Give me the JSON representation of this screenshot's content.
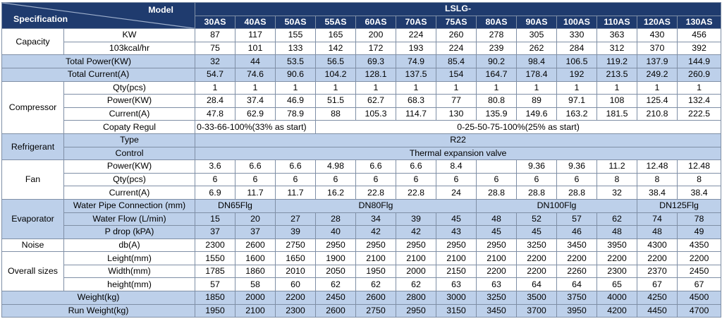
{
  "header": {
    "spec_label": "Specification",
    "model_label": "Model",
    "series": "LSLG-",
    "models": [
      "30AS",
      "40AS",
      "50AS",
      "55AS",
      "60AS",
      "70AS",
      "75AS",
      "80AS",
      "90AS",
      "100AS",
      "110AS",
      "120AS",
      "130AS"
    ]
  },
  "capacity": {
    "group": "Capacity",
    "kw_label": "KW",
    "kw": [
      "87",
      "117",
      "155",
      "165",
      "200",
      "224",
      "260",
      "278",
      "305",
      "330",
      "363",
      "430",
      "456"
    ],
    "kcal_label": "103kcal/hr",
    "kcal": [
      "75",
      "101",
      "133",
      "142",
      "172",
      "193",
      "224",
      "239",
      "262",
      "284",
      "312",
      "370",
      "392"
    ]
  },
  "total_power": {
    "label": "Total Power(KW)",
    "values": [
      "32",
      "44",
      "53.5",
      "56.5",
      "69.3",
      "74.9",
      "85.4",
      "90.2",
      "98.4",
      "106.5",
      "119.2",
      "137.9",
      "144.9"
    ]
  },
  "total_current": {
    "label": "Total Current(A)",
    "values": [
      "54.7",
      "74.6",
      "90.6",
      "104.2",
      "128.1",
      "137.5",
      "154",
      "164.7",
      "178.4",
      "192",
      "213.5",
      "249.2",
      "260.9"
    ]
  },
  "compressor": {
    "group": "Compressor",
    "qty_label": "Qty(pcs)",
    "qty": [
      "1",
      "1",
      "1",
      "1",
      "1",
      "1",
      "1",
      "1",
      "1",
      "1",
      "1",
      "1",
      "1"
    ],
    "power_label": "Power(KW)",
    "power": [
      "28.4",
      "37.4",
      "46.9",
      "51.5",
      "62.7",
      "68.3",
      "77",
      "80.8",
      "89",
      "97.1",
      "108",
      "125.4",
      "132.4"
    ],
    "current_label": "Current(A)",
    "current": [
      "47.8",
      "62.9",
      "78.9",
      "88",
      "105.3",
      "114.7",
      "130",
      "135.9",
      "149.6",
      "163.2",
      "181.5",
      "210.8",
      "222.5"
    ],
    "regul_label": "Copaty Regul",
    "regul_a": "0-33-66-100%(33% as start)",
    "regul_b": "0-25-50-75-100%(25% as start)"
  },
  "refrigerant": {
    "group": "Refrigerant",
    "type_label": "Type",
    "type": "R22",
    "control_label": "Control",
    "control": "Thermal expansion valve"
  },
  "fan": {
    "group": "Fan",
    "power_label": "Power(KW)",
    "power": [
      "3.6",
      "6.6",
      "6.6",
      "4.98",
      "6.6",
      "6.6",
      "8.4",
      "",
      "9.36",
      "9.36",
      "11.2",
      "12.48",
      "12.48"
    ],
    "qty_label": "Qty(pcs)",
    "qty": [
      "6",
      "6",
      "6",
      "6",
      "6",
      "6",
      "6",
      "6",
      "6",
      "6",
      "8",
      "8",
      "8"
    ],
    "current_label": "Current(A)",
    "current": [
      "6.9",
      "11.7",
      "11.7",
      "16.2",
      "22.8",
      "22.8",
      "24",
      "28.8",
      "28.8",
      "28.8",
      "32",
      "38.4",
      "38.4"
    ]
  },
  "evaporator": {
    "group": "Evaporator",
    "pipe_label": "Water Pipe Connection (mm)",
    "pipe": [
      "DN65Flg",
      "DN80Flg",
      "DN100Flg",
      "DN125Flg"
    ],
    "flow_label": "Water Flow (L/min)",
    "flow": [
      "15",
      "20",
      "27",
      "28",
      "34",
      "39",
      "45",
      "48",
      "52",
      "57",
      "62",
      "74",
      "78"
    ],
    "pdrop_label": "P drop (kPA)",
    "pdrop": [
      "37",
      "37",
      "39",
      "40",
      "42",
      "42",
      "43",
      "45",
      "45",
      "46",
      "48",
      "48",
      "49"
    ]
  },
  "noise": {
    "group": "Noise",
    "label": "db(A)",
    "values": [
      "2300",
      "2600",
      "2750",
      "2950",
      "2950",
      "2950",
      "2950",
      "2950",
      "3250",
      "3450",
      "3950",
      "4300",
      "4350"
    ]
  },
  "sizes": {
    "group": "Overall sizes",
    "length_label": "Leight(mm)",
    "length": [
      "1550",
      "1600",
      "1650",
      "1900",
      "2100",
      "2100",
      "2100",
      "2100",
      "2200",
      "2200",
      "2200",
      "2200",
      "2200"
    ],
    "width_label": "Width(mm)",
    "width": [
      "1785",
      "1860",
      "2010",
      "2050",
      "1950",
      "2000",
      "2150",
      "2200",
      "2200",
      "2260",
      "2300",
      "2370",
      "2450"
    ],
    "height_label": "height(mm)",
    "height": [
      "57",
      "58",
      "60",
      "62",
      "62",
      "62",
      "63",
      "63",
      "64",
      "64",
      "65",
      "67",
      "67"
    ]
  },
  "weight": {
    "label": "Weight(kg)",
    "values": [
      "1850",
      "2000",
      "2200",
      "2450",
      "2600",
      "2800",
      "3000",
      "3250",
      "3500",
      "3750",
      "4000",
      "4250",
      "4500"
    ]
  },
  "run_weight": {
    "label": "Run Weight(kg)",
    "values": [
      "1950",
      "2100",
      "2300",
      "2600",
      "2750",
      "2950",
      "3150",
      "3450",
      "3700",
      "3950",
      "4200",
      "4450",
      "4700"
    ]
  },
  "colors": {
    "header_bg": "#1f3b6e",
    "shade_bg": "#bdd0ea",
    "border": "#7f8fa6"
  }
}
